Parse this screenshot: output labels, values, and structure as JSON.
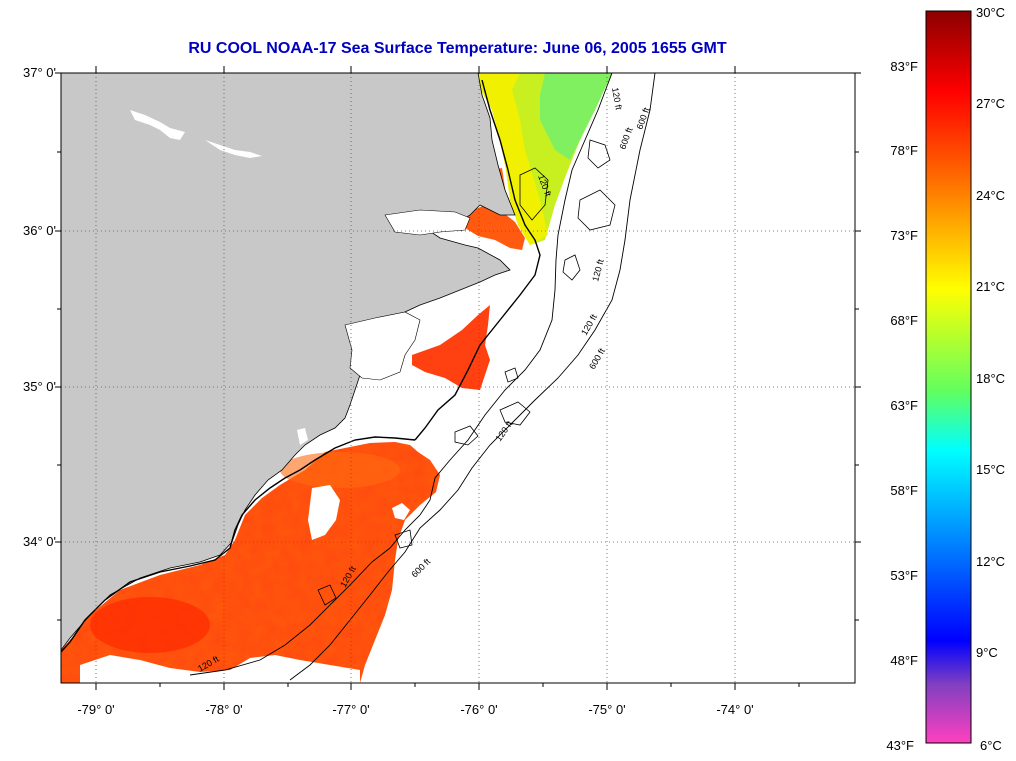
{
  "title": "RU COOL  NOAA-17  Sea Surface Temperature:  June 06, 2005 1655 GMT",
  "colors": {
    "title": "#0000c0",
    "land": "#c8c8c8",
    "no_data": "#ffffff",
    "grid": "#555555"
  },
  "map": {
    "lat_labels": [
      "37° 0'",
      "36° 0'",
      "35° 0'",
      "34° 0'"
    ],
    "lon_labels": [
      "-79° 0'",
      "-78° 0'",
      "-77° 0'",
      "-76° 0'",
      "-75° 0'",
      "-74° 0'"
    ],
    "grid": "dotted",
    "contour_labels": [
      "120 ft",
      "600 ft",
      "120 ft",
      "600 ft",
      "120 ft",
      "120 ft",
      "600 ft",
      "120 ft",
      "600 ft",
      "120 ft",
      "120 ft"
    ]
  },
  "colorbar": {
    "f_labels": [
      "83°F",
      "78°F",
      "73°F",
      "68°F",
      "63°F",
      "58°F",
      "53°F",
      "48°F",
      "43°F"
    ],
    "c_labels": [
      "30°C",
      "27°C",
      "24°C",
      "21°C",
      "18°C",
      "15°C",
      "12°C",
      "9°C",
      "6°C"
    ],
    "stops": [
      "#8b0000",
      "#ff0000",
      "#ff8000",
      "#ffff00",
      "#80ff40",
      "#00ffff",
      "#0080ff",
      "#0000ff",
      "#8040c0",
      "#ff40c0"
    ]
  }
}
